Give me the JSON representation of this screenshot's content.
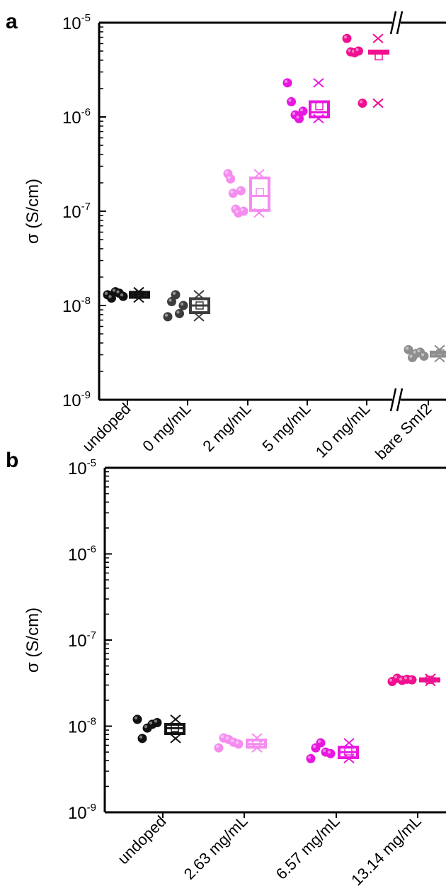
{
  "panels": {
    "a": {
      "label": "a"
    },
    "b": {
      "label": "b"
    }
  },
  "chart_data": [
    {
      "type": "scatter",
      "panel": "a",
      "title": "",
      "ylabel": "σ (S/cm)",
      "yscale": "log",
      "ylim": [
        1e-09,
        1e-05
      ],
      "yticks": [
        {
          "base": "10",
          "exp": "-9"
        },
        {
          "base": "10",
          "exp": "-8"
        },
        {
          "base": "10",
          "exp": "-7"
        },
        {
          "base": "10",
          "exp": "-6"
        },
        {
          "base": "10",
          "exp": "-5"
        }
      ],
      "axis_break": "between 10 mg/mL and bare SmI2",
      "categories": [
        "undoped",
        "0 mg/mL",
        "2 mg/mL",
        "5 mg/mL",
        "10 mg/mL",
        "bare SmI2"
      ],
      "colors": [
        "#111111",
        "#3c3c3c",
        "#f58cf0",
        "#e817e0",
        "#f0108f",
        "#8e8e8e"
      ],
      "points": [
        [
          1.3e-08,
          1.2e-08,
          1.4e-08,
          1.35e-08,
          1.25e-08
        ],
        [
          7.6e-09,
          1.1e-08,
          1.3e-08,
          8.2e-09,
          1e-08
        ],
        [
          2.5e-07,
          2.2e-07,
          1.55e-07,
          1.05e-07,
          9.6e-08,
          1.65e-07,
          1e-07
        ],
        [
          2.3e-06,
          1.45e-06,
          1.05e-06,
          9.6e-07,
          1.15e-06
        ],
        [
          6.8e-06,
          4.9e-06,
          4.8e-06,
          5e-06,
          1.4e-06
        ],
        [
          3.4e-09,
          2.8e-09,
          3.1e-09,
          3.2e-09,
          2.9e-09
        ]
      ],
      "boxes": [
        {
          "q1": 1.22e-08,
          "median": 1.3e-08,
          "q3": 1.38e-08,
          "mean": 1.3e-08,
          "min": 1.2e-08,
          "max": 1.4e-08
        },
        {
          "q1": 8.4e-09,
          "median": 1e-08,
          "q3": 1.18e-08,
          "mean": 1e-08,
          "min": 7.6e-09,
          "max": 1.3e-08
        },
        {
          "q1": 1.02e-07,
          "median": 1.45e-07,
          "q3": 2.25e-07,
          "mean": 1.6e-07,
          "min": 9.6e-08,
          "max": 2.5e-07
        },
        {
          "q1": 1e-06,
          "median": 1.12e-06,
          "q3": 1.45e-06,
          "mean": 1.3e-06,
          "min": 9.6e-07,
          "max": 2.3e-06
        },
        {
          "q1": 4.85e-06,
          "median": 4.9e-06,
          "q3": 5e-06,
          "mean": 4.4e-06,
          "min": 1.4e-06,
          "max": 6.8e-06
        },
        {
          "q1": 2.9e-09,
          "median": 3.1e-09,
          "q3": 3.2e-09,
          "mean": 3.1e-09,
          "min": 2.8e-09,
          "max": 3.4e-09
        }
      ],
      "minmax_marked_with": "cross"
    },
    {
      "type": "scatter",
      "panel": "b",
      "title": "",
      "ylabel": "σ (S/cm)",
      "yscale": "log",
      "ylim": [
        1e-09,
        1e-05
      ],
      "yticks": [
        {
          "base": "10",
          "exp": "-9"
        },
        {
          "base": "10",
          "exp": "-8"
        },
        {
          "base": "10",
          "exp": "-7"
        },
        {
          "base": "10",
          "exp": "-6"
        },
        {
          "base": "10",
          "exp": "-5"
        }
      ],
      "categories": [
        "undoped",
        "2.63 mg/mL",
        "6.57 mg/mL",
        "13.14 mg/mL"
      ],
      "colors": [
        "#111111",
        "#f58cf0",
        "#e817e0",
        "#f0108f"
      ],
      "points": [
        [
          1.2e-08,
          7.2e-09,
          9.5e-09,
          1.05e-08,
          1.1e-08
        ],
        [
          5.6e-09,
          7.3e-09,
          7e-09,
          6.5e-09,
          6.2e-09
        ],
        [
          4.2e-09,
          5.6e-09,
          6.4e-09,
          5e-09,
          4.8e-09
        ],
        [
          3.3e-08,
          3.6e-08,
          3.4e-08,
          3.5e-08,
          3.45e-08
        ]
      ],
      "boxes": [
        {
          "q1": 8.2e-09,
          "median": 9.5e-09,
          "q3": 1.05e-08,
          "mean": 9.5e-09,
          "min": 7.2e-09,
          "max": 1.2e-08
        },
        {
          "q1": 5.7e-09,
          "median": 6.2e-09,
          "q3": 6.9e-09,
          "mean": 6.3e-09,
          "min": 5.6e-09,
          "max": 7.3e-09
        },
        {
          "q1": 4.3e-09,
          "median": 5e-09,
          "q3": 5.7e-09,
          "mean": 5.1e-09,
          "min": 4.2e-09,
          "max": 6.4e-09
        },
        {
          "q1": 3.35e-08,
          "median": 3.45e-08,
          "q3": 3.55e-08,
          "mean": 3.45e-08,
          "min": 3.3e-08,
          "max": 3.6e-08
        }
      ],
      "minmax_marked_with": "cross"
    }
  ]
}
